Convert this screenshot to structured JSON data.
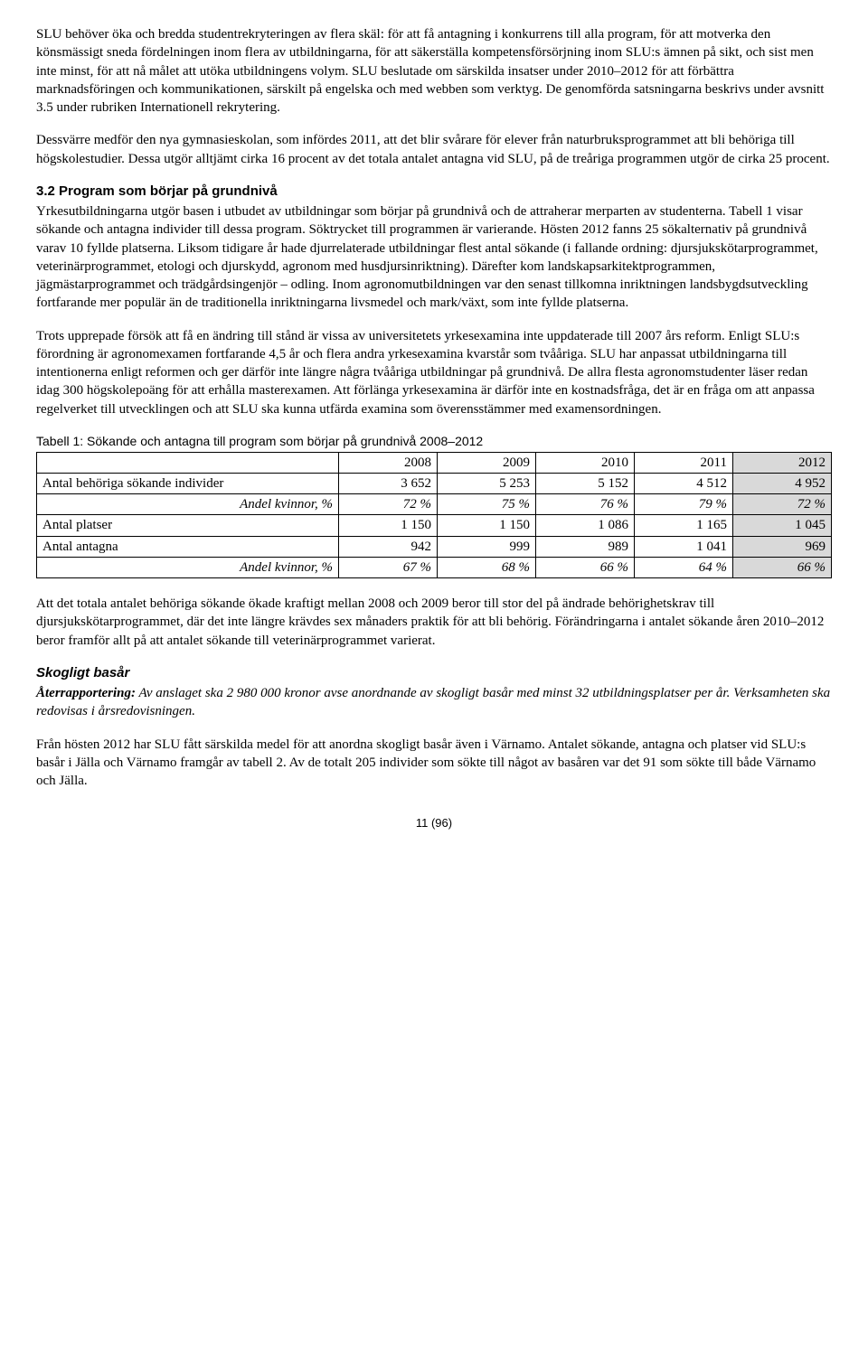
{
  "para1": "SLU behöver öka och bredda studentrekryteringen av flera skäl: för att få antagning i konkurrens till alla program, för att motverka den könsmässigt sneda fördelningen inom flera av utbildningarna, för att säkerställa kompetensförsörjning inom SLU:s ämnen på sikt, och sist men inte minst, för att nå målet att utöka utbildningens volym. SLU beslutade om särskilda insatser under 2010–2012 för att förbättra marknadsföringen och kommunikationen, särskilt på engelska och med webben som verktyg. De genomförda satsningarna beskrivs under avsnitt 3.5 under rubriken Internationell rekrytering.",
  "para2": "Dessvärre medför den nya gymnasieskolan, som infördes 2011, att det blir svårare för elever från naturbruksprogrammet att bli behöriga till högskolestudier. Dessa utgör alltjämt cirka 16 procent av det totala antalet antagna vid SLU, på de treåriga programmen utgör de cirka 25 procent.",
  "h3_1": "3.2 Program som börjar på grundnivå",
  "para3": "Yrkesutbildningarna utgör basen i utbudet av utbildningar som börjar på grundnivå och de attraherar merparten av studenterna. Tabell 1 visar sökande och antagna individer till dessa program. Söktrycket till programmen är varierande. Hösten 2012 fanns 25 sökalternativ på grundnivå varav 10 fyllde platserna. Liksom tidigare år hade djurrelaterade utbildningar flest antal sökande (i fallande ordning: djursjukskötarprogrammet, veterinärprogrammet, etologi och djurskydd, agronom med husdjursinriktning). Därefter kom landskapsarkitektprogrammen, jägmästarprogrammet och trädgårdsingenjör – odling. Inom agronomutbildningen var den senast tillkomna inriktningen landsbygdsutveckling fortfarande mer populär än de traditionella inriktningarna livsmedel och mark/växt, som inte fyllde platserna.",
  "para4": "Trots upprepade försök att få en ändring till stånd är vissa av universitetets yrkesexamina inte uppdaterade till 2007 års reform. Enligt SLU:s förordning är agronomexamen fortfarande 4,5 år och flera andra yrkesexamina kvarstår som tvååriga. SLU har anpassat utbildningarna till intentionerna enligt reformen och ger därför inte längre några tvååriga utbildningar på grundnivå. De allra flesta agronomstudenter läser redan idag 300 högskolepoäng för att erhålla masterexamen. Att förlänga yrkesexamina är därför inte en kostnadsfråga, det är en fråga om att anpassa regelverket till utvecklingen och att SLU ska kunna utfärda examina som överensstämmer med examensordningen.",
  "table_caption": "Tabell 1: Sökande och antagna till program som börjar på grundnivå 2008–2012",
  "table": {
    "years": [
      "2008",
      "2009",
      "2010",
      "2011",
      "2012"
    ],
    "rows": [
      {
        "label": "Antal behöriga sökande individer",
        "vals": [
          "3 652",
          "5 253",
          "5 152",
          "4 512",
          "4 952"
        ],
        "italic": false,
        "indent": false
      },
      {
        "label": "Andel kvinnor, %",
        "vals": [
          "72 %",
          "75 %",
          "76 %",
          "79 %",
          "72 %"
        ],
        "italic": true,
        "indent": true
      },
      {
        "label": "Antal platser",
        "vals": [
          "1 150",
          "1 150",
          "1 086",
          "1 165",
          "1 045"
        ],
        "italic": false,
        "indent": false
      },
      {
        "label": "Antal antagna",
        "vals": [
          "942",
          "999",
          "989",
          "1 041",
          "969"
        ],
        "italic": false,
        "indent": false
      },
      {
        "label": "Andel kvinnor, %",
        "vals": [
          "67 %",
          "68 %",
          "66 %",
          "64 %",
          "66 %"
        ],
        "italic": true,
        "indent": true
      }
    ],
    "col_widths": [
      "38%",
      "12.4%",
      "12.4%",
      "12.4%",
      "12.4%",
      "12.4%"
    ]
  },
  "para5": "Att det totala antalet behöriga sökande ökade kraftigt mellan 2008 och 2009 beror till stor del på ändrade behörighetskrav till djursjukskötarprogrammet, där det inte längre krävdes sex månaders praktik för att bli behörig. Förändringarna i antalet sökande åren 2010–2012 beror framför allt på att antalet sökande till veterinärprogrammet varierat.",
  "h_italic": "Skogligt basår",
  "report_label": "Återrapportering:",
  "report_text": " Av anslaget ska 2 980 000 kronor avse anordnande av skogligt basår med minst 32 utbildningsplatser per år. Verksamheten ska redovisas i årsredovisningen.",
  "para6": "Från hösten 2012 har SLU fått särskilda medel för att anordna skogligt basår även i Värnamo. Antalet sökande, antagna och platser vid SLU:s basår i Jälla och Värnamo framgår av tabell 2. Av de totalt 205 individer som sökte till något av basåren var det 91 som sökte till både Värnamo och Jälla.",
  "page_num": "11 (96)"
}
